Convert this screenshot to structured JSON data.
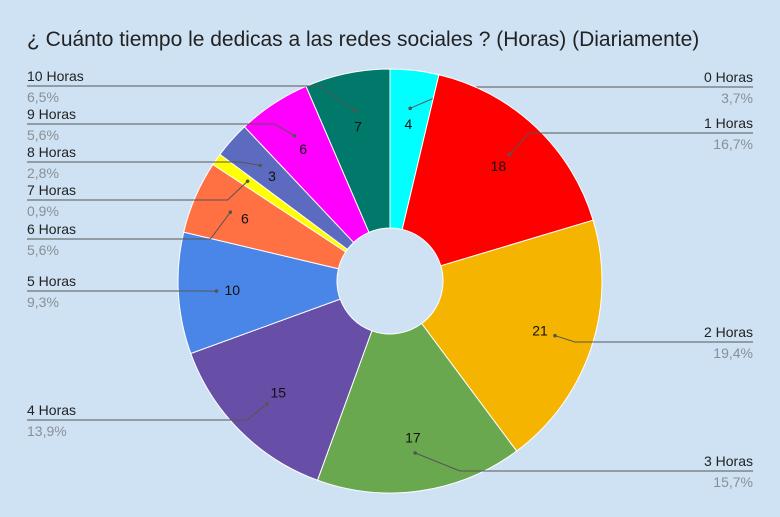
{
  "chart_data": {
    "type": "pie",
    "donut": true,
    "title": "¿ Cuánto tiempo le dedicas a las redes sociales ? (Horas) (Diariamente)",
    "legend": "labels-around",
    "slices": [
      {
        "label": "0 Horas",
        "value": 4,
        "percent": "3,7%",
        "color": "#00ffff"
      },
      {
        "label": "1 Horas",
        "value": 18,
        "percent": "16,7%",
        "color": "#ff0000"
      },
      {
        "label": "2 Horas",
        "value": 21,
        "percent": "19,4%",
        "color": "#f4b400"
      },
      {
        "label": "3 Horas",
        "value": 17,
        "percent": "15,7%",
        "color": "#6aa84f"
      },
      {
        "label": "4 Horas",
        "value": 15,
        "percent": "13,9%",
        "color": "#674ea7"
      },
      {
        "label": "5 Horas",
        "value": 10,
        "percent": "9,3%",
        "color": "#4a86e8"
      },
      {
        "label": "6 Horas",
        "value": 6,
        "percent": "5,6%",
        "color": "#ff7043"
      },
      {
        "label": "7 Horas",
        "value": 1,
        "percent": "0,9%",
        "color": "#ffff00"
      },
      {
        "label": "8 Horas",
        "value": 3,
        "percent": "2,8%",
        "color": "#5c6bc0"
      },
      {
        "label": "9 Horas",
        "value": 6,
        "percent": "5,6%",
        "color": "#ff00ff"
      },
      {
        "label": "10 Horas",
        "value": 7,
        "percent": "6,5%",
        "color": "#00796b"
      }
    ]
  }
}
